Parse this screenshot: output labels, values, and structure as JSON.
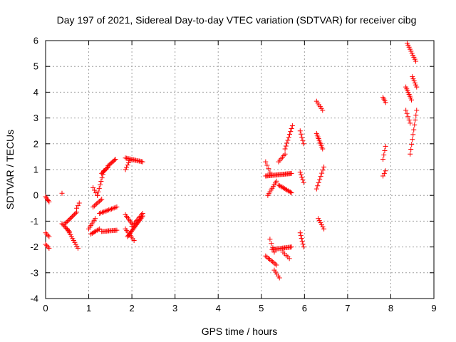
{
  "chart_data": {
    "type": "scatter",
    "title": "Day 197 of 2021, Sidereal Day-to-day VTEC variation (SDTVAR) for receiver cibg",
    "xlabel": "GPS time / hours",
    "ylabel": "SDTVAR / TECUs",
    "xlim": [
      0,
      9
    ],
    "ylim": [
      -4,
      6
    ],
    "xticks": [
      "0",
      "1",
      "2",
      "3",
      "4",
      "5",
      "6",
      "7",
      "8",
      "9"
    ],
    "yticks": [
      "-4",
      "-3",
      "-2",
      "-1",
      "0",
      "1",
      "2",
      "3",
      "4",
      "5",
      "6"
    ],
    "grid": true,
    "marker": "+",
    "marker_color": "#ff0000",
    "segments": [
      {
        "x0": 0.0,
        "x1": 0.08,
        "y0": -0.05,
        "y1": -0.25,
        "n": 5
      },
      {
        "x0": 0.0,
        "x1": 0.08,
        "y0": -1.45,
        "y1": -1.6,
        "n": 4
      },
      {
        "x0": 0.0,
        "x1": 0.08,
        "y0": -1.9,
        "y1": -2.05,
        "n": 4
      },
      {
        "x0": 0.38,
        "x1": 0.38,
        "y0": 0.08,
        "y1": 0.08,
        "n": 1
      },
      {
        "x0": 0.38,
        "x1": 0.55,
        "y0": -1.1,
        "y1": -1.4,
        "n": 8
      },
      {
        "x0": 0.5,
        "x1": 0.75,
        "y0": -1.3,
        "y1": -2.05,
        "n": 11
      },
      {
        "x0": 0.45,
        "x1": 0.72,
        "y0": -1.1,
        "y1": -0.65,
        "n": 12
      },
      {
        "x0": 0.72,
        "x1": 0.78,
        "y0": -0.5,
        "y1": -0.3,
        "n": 3
      },
      {
        "x0": 1.0,
        "x1": 1.15,
        "y0": -1.3,
        "y1": -0.9,
        "n": 7
      },
      {
        "x0": 1.05,
        "x1": 1.25,
        "y0": -1.5,
        "y1": -1.3,
        "n": 8
      },
      {
        "x0": 1.1,
        "x1": 1.3,
        "y0": -0.45,
        "y1": -0.15,
        "n": 8
      },
      {
        "x0": 1.1,
        "x1": 1.2,
        "y0": 0.3,
        "y1": 0.0,
        "n": 4
      },
      {
        "x0": 1.2,
        "x1": 1.35,
        "y0": 0.0,
        "y1": 0.95,
        "n": 8
      },
      {
        "x0": 1.3,
        "x1": 1.45,
        "y0": 0.85,
        "y1": 1.1,
        "n": 8
      },
      {
        "x0": 1.45,
        "x1": 1.62,
        "y0": 1.15,
        "y1": 1.4,
        "n": 8
      },
      {
        "x0": 1.25,
        "x1": 1.65,
        "y0": -0.7,
        "y1": -0.45,
        "n": 14
      },
      {
        "x0": 1.3,
        "x1": 1.65,
        "y0": -1.4,
        "y1": -1.35,
        "n": 14
      },
      {
        "x0": 1.85,
        "x1": 2.25,
        "y0": 1.45,
        "y1": 1.3,
        "n": 16
      },
      {
        "x0": 1.85,
        "x1": 1.95,
        "y0": 1.0,
        "y1": 1.35,
        "n": 5
      },
      {
        "x0": 1.85,
        "x1": 2.0,
        "y0": -0.75,
        "y1": -1.1,
        "n": 7
      },
      {
        "x0": 1.9,
        "x1": 2.25,
        "y0": -1.6,
        "y1": -0.8,
        "n": 20
      },
      {
        "x0": 1.85,
        "x1": 2.05,
        "y0": -1.3,
        "y1": -1.75,
        "n": 8
      },
      {
        "x0": 2.0,
        "x1": 2.25,
        "y0": -1.2,
        "y1": -0.7,
        "n": 10
      },
      {
        "x0": 5.1,
        "x1": 5.2,
        "y0": 1.3,
        "y1": 0.9,
        "n": 4
      },
      {
        "x0": 5.1,
        "x1": 5.7,
        "y0": 0.75,
        "y1": 0.85,
        "n": 26
      },
      {
        "x0": 5.15,
        "x1": 5.35,
        "y0": 0.0,
        "y1": 0.55,
        "n": 9
      },
      {
        "x0": 5.4,
        "x1": 5.7,
        "y0": 0.4,
        "y1": 0.1,
        "n": 12
      },
      {
        "x0": 5.4,
        "x1": 5.55,
        "y0": 1.3,
        "y1": 1.6,
        "n": 6
      },
      {
        "x0": 5.55,
        "x1": 5.72,
        "y0": 1.8,
        "y1": 2.7,
        "n": 9
      },
      {
        "x0": 5.1,
        "x1": 5.35,
        "y0": -2.35,
        "y1": -2.7,
        "n": 9
      },
      {
        "x0": 5.3,
        "x1": 5.42,
        "y0": -2.9,
        "y1": -3.2,
        "n": 5
      },
      {
        "x0": 5.2,
        "x1": 5.3,
        "y0": -1.7,
        "y1": -2.2,
        "n": 4
      },
      {
        "x0": 5.25,
        "x1": 5.7,
        "y0": -2.1,
        "y1": -2.0,
        "n": 18
      },
      {
        "x0": 5.5,
        "x1": 5.65,
        "y0": -2.2,
        "y1": -2.45,
        "n": 5
      },
      {
        "x0": 5.9,
        "x1": 5.98,
        "y0": 0.9,
        "y1": 0.5,
        "n": 5
      },
      {
        "x0": 5.9,
        "x1": 5.98,
        "y0": 2.5,
        "y1": 2.0,
        "n": 5
      },
      {
        "x0": 5.9,
        "x1": 5.98,
        "y0": -1.45,
        "y1": -2.0,
        "n": 6
      },
      {
        "x0": 6.28,
        "x1": 6.42,
        "y0": 3.65,
        "y1": 3.3,
        "n": 6
      },
      {
        "x0": 6.28,
        "x1": 6.42,
        "y0": 2.4,
        "y1": 1.8,
        "n": 10
      },
      {
        "x0": 6.28,
        "x1": 6.45,
        "y0": 0.25,
        "y1": 1.1,
        "n": 8
      },
      {
        "x0": 6.32,
        "x1": 6.45,
        "y0": -0.9,
        "y1": -1.3,
        "n": 6
      },
      {
        "x0": 7.82,
        "x1": 7.88,
        "y0": 3.8,
        "y1": 3.6,
        "n": 4
      },
      {
        "x0": 7.82,
        "x1": 7.88,
        "y0": 1.4,
        "y1": 1.9,
        "n": 4
      },
      {
        "x0": 7.82,
        "x1": 7.88,
        "y0": 0.75,
        "y1": 0.95,
        "n": 3
      },
      {
        "x0": 8.38,
        "x1": 8.58,
        "y0": 5.9,
        "y1": 5.2,
        "n": 10
      },
      {
        "x0": 8.5,
        "x1": 8.6,
        "y0": 4.6,
        "y1": 4.2,
        "n": 6
      },
      {
        "x0": 8.35,
        "x1": 8.48,
        "y0": 4.2,
        "y1": 3.7,
        "n": 8
      },
      {
        "x0": 8.35,
        "x1": 8.45,
        "y0": 3.3,
        "y1": 2.8,
        "n": 5
      },
      {
        "x0": 8.45,
        "x1": 8.6,
        "y0": 1.6,
        "y1": 3.3,
        "n": 10
      }
    ]
  }
}
